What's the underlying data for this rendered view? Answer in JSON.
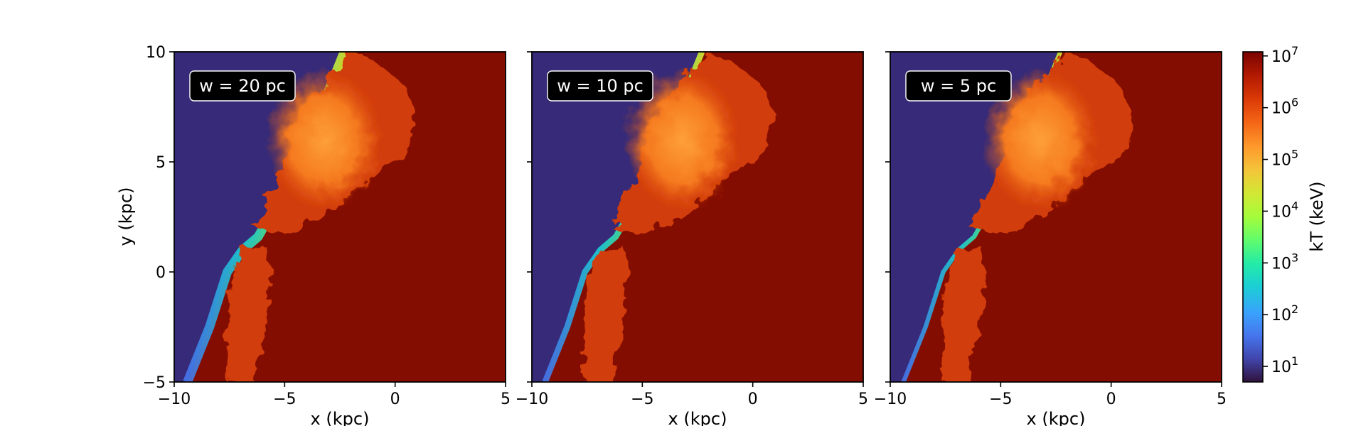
{
  "chart_data": {
    "type": "heatmap",
    "xlabel": "x (kpc)",
    "ylabel": "y (kpc)",
    "xlim": [
      -10,
      5
    ],
    "ylim": [
      -5,
      10
    ],
    "x_ticks": [
      -10,
      -5,
      0,
      5
    ],
    "x_tick_labels": [
      "−10",
      "−5",
      "0",
      "5"
    ],
    "y_ticks": [
      -5,
      0,
      5,
      10
    ],
    "y_tick_labels": [
      "−5",
      "0",
      "5",
      "10"
    ],
    "panels": [
      {
        "annotation": "w = 20 pc",
        "front_width": 20
      },
      {
        "annotation": "w = 10 pc",
        "front_width": 10
      },
      {
        "annotation": "w = 5 pc",
        "front_width": 5
      }
    ],
    "colorbar": {
      "label": "kT (keV)",
      "scale": "log",
      "range": [
        5,
        12000000
      ],
      "ticks": [
        10,
        100,
        1000,
        10000,
        100000,
        1000000,
        10000000
      ],
      "tick_bases": [
        "10",
        "10",
        "10",
        "10",
        "10",
        "10",
        "10"
      ],
      "tick_exps": [
        "1",
        "2",
        "3",
        "4",
        "5",
        "6",
        "7"
      ],
      "colormap": "turbo"
    },
    "colors": {
      "cold_background": "#372a78",
      "hot_background": "#840d01",
      "hot_gas": "#d23c07",
      "warm_gas": "#f08828"
    }
  }
}
